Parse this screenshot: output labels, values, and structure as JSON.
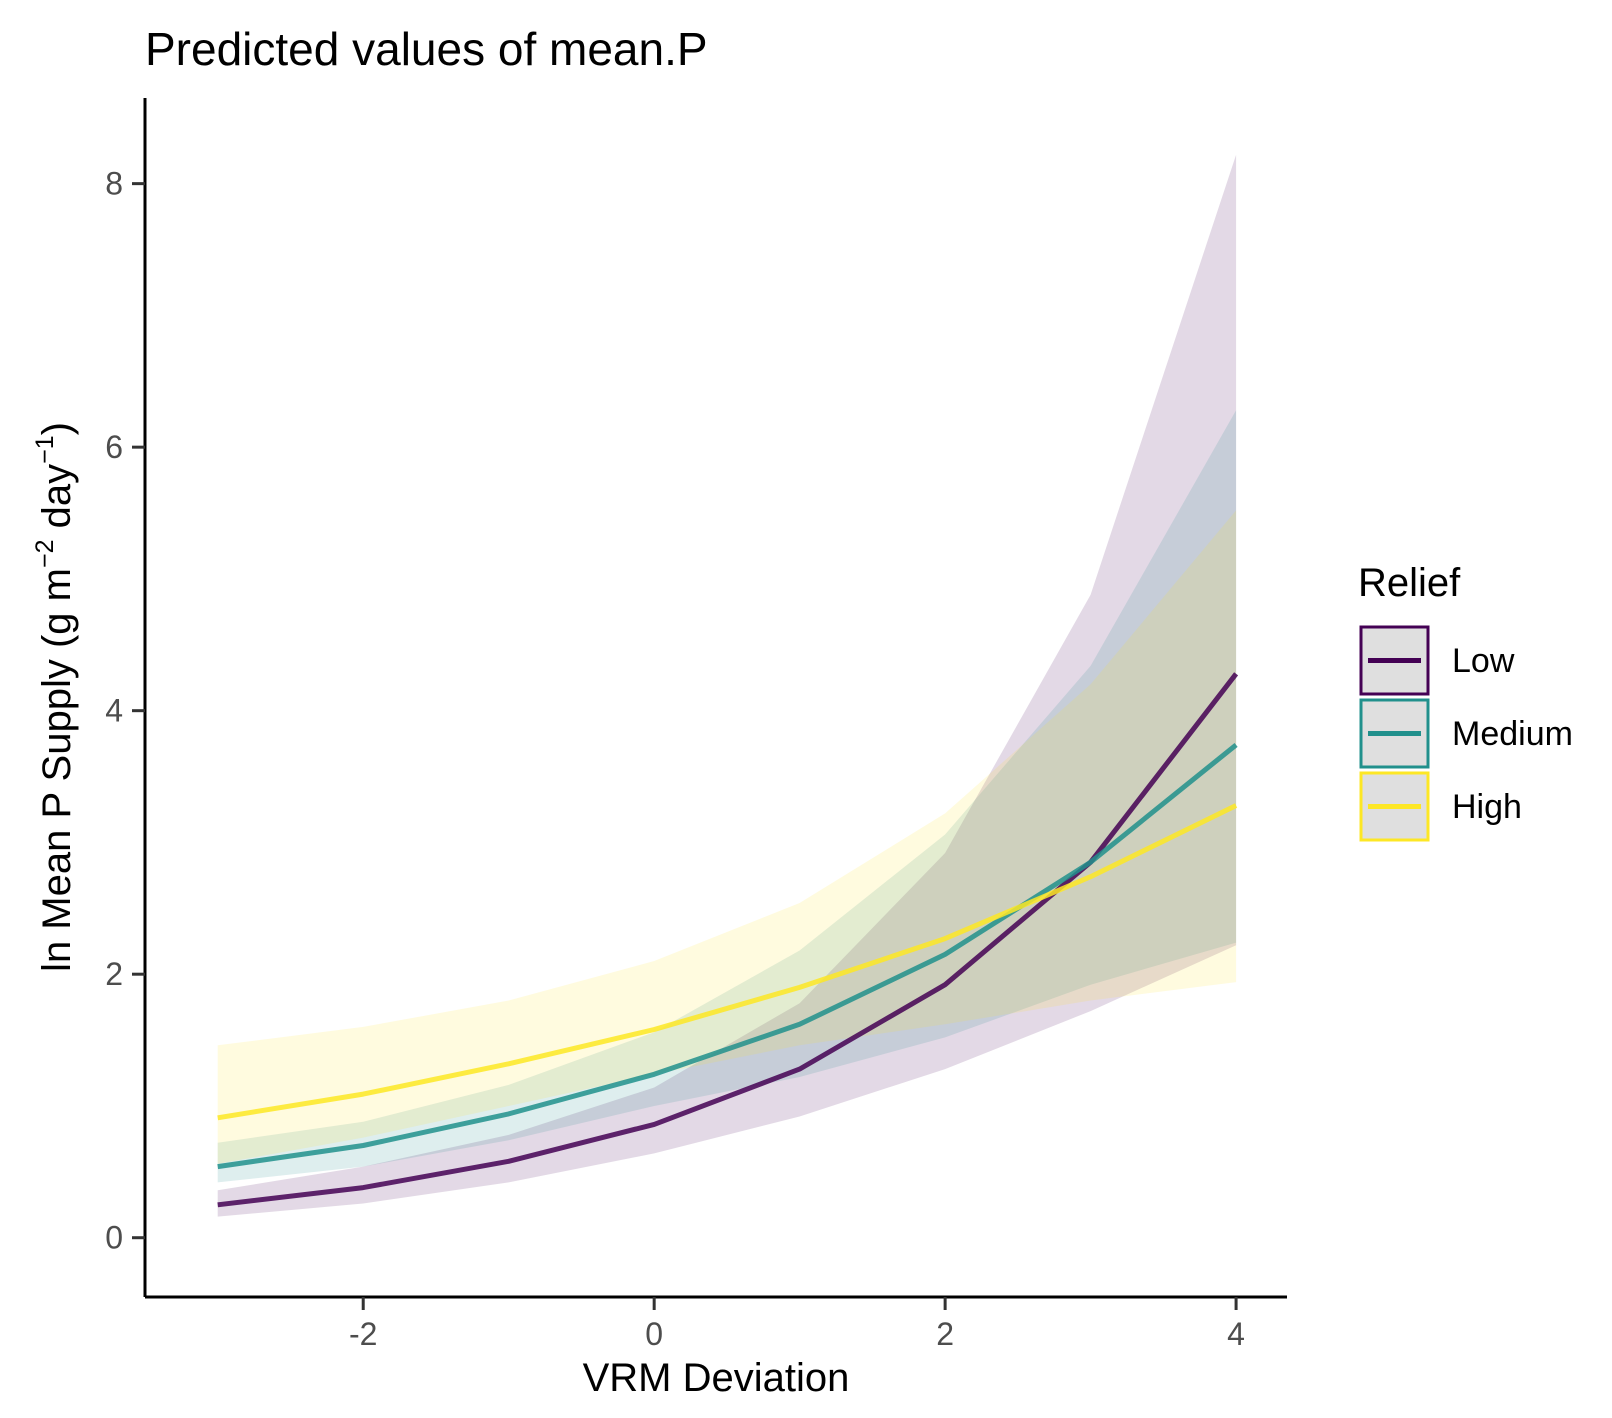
{
  "chart_data": {
    "type": "line",
    "title": "Predicted values of mean.P",
    "xlabel": "VRM Deviation",
    "ylabel": "ln Mean P Supply (g m⁻² day⁻¹)",
    "ylabel_parts": {
      "main": "ln Mean P Supply (g m",
      "sup1": "−2",
      "mid": " day",
      "sup2": "−1",
      "end": ")"
    },
    "xlim": [
      -3.5,
      4.35
    ],
    "ylim": [
      -0.45,
      8.65
    ],
    "x_ticks": [
      -2,
      0,
      2,
      4
    ],
    "y_ticks": [
      0,
      2,
      4,
      6,
      8
    ],
    "x_tick_labels": [
      "-2",
      "0",
      "2",
      "4"
    ],
    "y_tick_labels": [
      "0",
      "2",
      "4",
      "6",
      "8"
    ],
    "grid": false,
    "legend_position": "right",
    "legend_title": "Relief",
    "x": [
      -3,
      -2,
      -1,
      0,
      1,
      2,
      3,
      4
    ],
    "series": [
      {
        "name": "Low",
        "color": "#440154",
        "values": [
          0.25,
          0.38,
          0.58,
          0.86,
          1.28,
          1.92,
          2.85,
          4.28
        ],
        "lower": [
          0.16,
          0.26,
          0.42,
          0.64,
          0.92,
          1.28,
          1.72,
          2.22
        ],
        "upper": [
          0.36,
          0.54,
          0.78,
          1.14,
          1.78,
          2.92,
          4.88,
          8.22
        ]
      },
      {
        "name": "Medium",
        "color": "#21908C",
        "values": [
          0.54,
          0.7,
          0.94,
          1.24,
          1.62,
          2.15,
          2.85,
          3.74
        ],
        "lower": [
          0.42,
          0.54,
          0.74,
          1.0,
          1.22,
          1.52,
          1.92,
          2.24
        ],
        "upper": [
          0.72,
          0.88,
          1.16,
          1.56,
          2.18,
          3.06,
          4.34,
          6.28
        ]
      },
      {
        "name": "High",
        "color": "#FDE725",
        "values": [
          0.91,
          1.09,
          1.32,
          1.58,
          1.9,
          2.27,
          2.74,
          3.28
        ],
        "lower": [
          0.56,
          0.76,
          1.0,
          1.24,
          1.46,
          1.62,
          1.8,
          1.94
        ],
        "upper": [
          1.46,
          1.6,
          1.8,
          2.1,
          2.54,
          3.22,
          4.2,
          5.52
        ]
      }
    ]
  }
}
